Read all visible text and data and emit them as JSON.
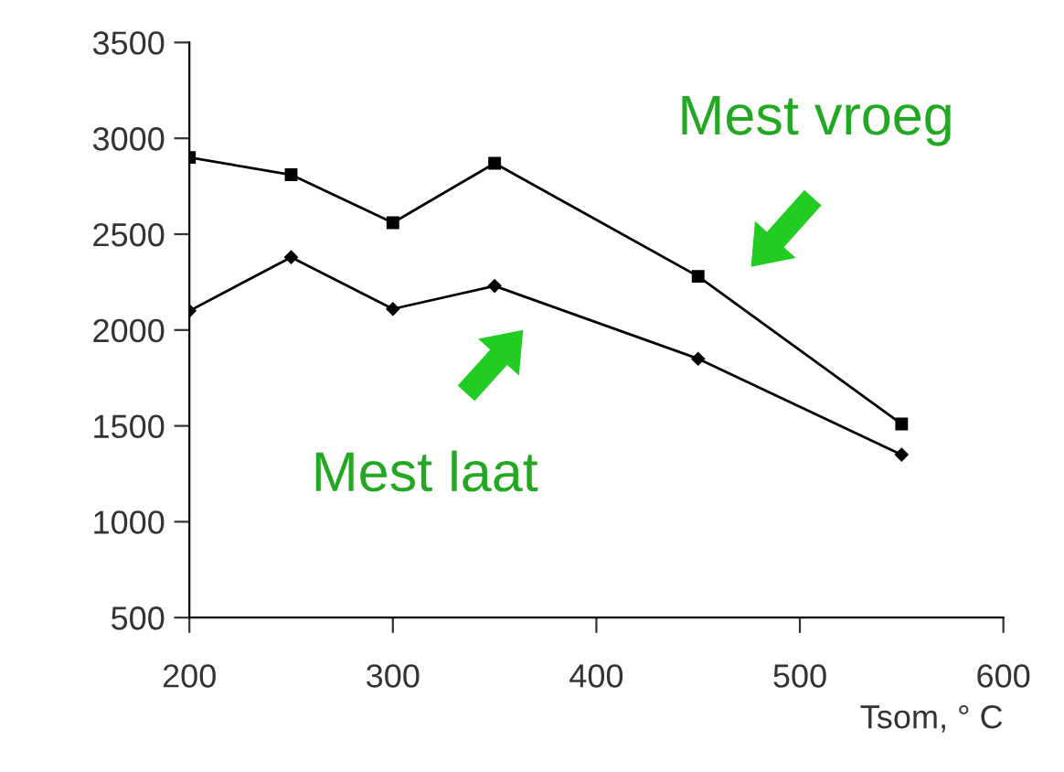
{
  "chart_data": {
    "type": "line",
    "xlabel": "Tsom, ° C",
    "xlim": [
      200,
      600
    ],
    "xticks": [
      200,
      300,
      400,
      500,
      600
    ],
    "ylim": [
      500,
      3500
    ],
    "yticks": [
      500,
      1000,
      1500,
      2000,
      2500,
      3000,
      3500
    ],
    "grid": false,
    "legend": false,
    "line_style": "solid",
    "series": [
      {
        "name": "Mest vroeg",
        "color": "#000000",
        "marker": "square",
        "x": [
          200,
          250,
          300,
          350,
          450,
          550
        ],
        "values": [
          2900,
          2810,
          2560,
          2870,
          2280,
          1510
        ]
      },
      {
        "name": "Mest laat",
        "color": "#000000",
        "marker": "diamond",
        "x": [
          200,
          250,
          300,
          350,
          450,
          550
        ],
        "values": [
          2100,
          2380,
          2110,
          2230,
          1850,
          1350
        ]
      }
    ]
  }
}
